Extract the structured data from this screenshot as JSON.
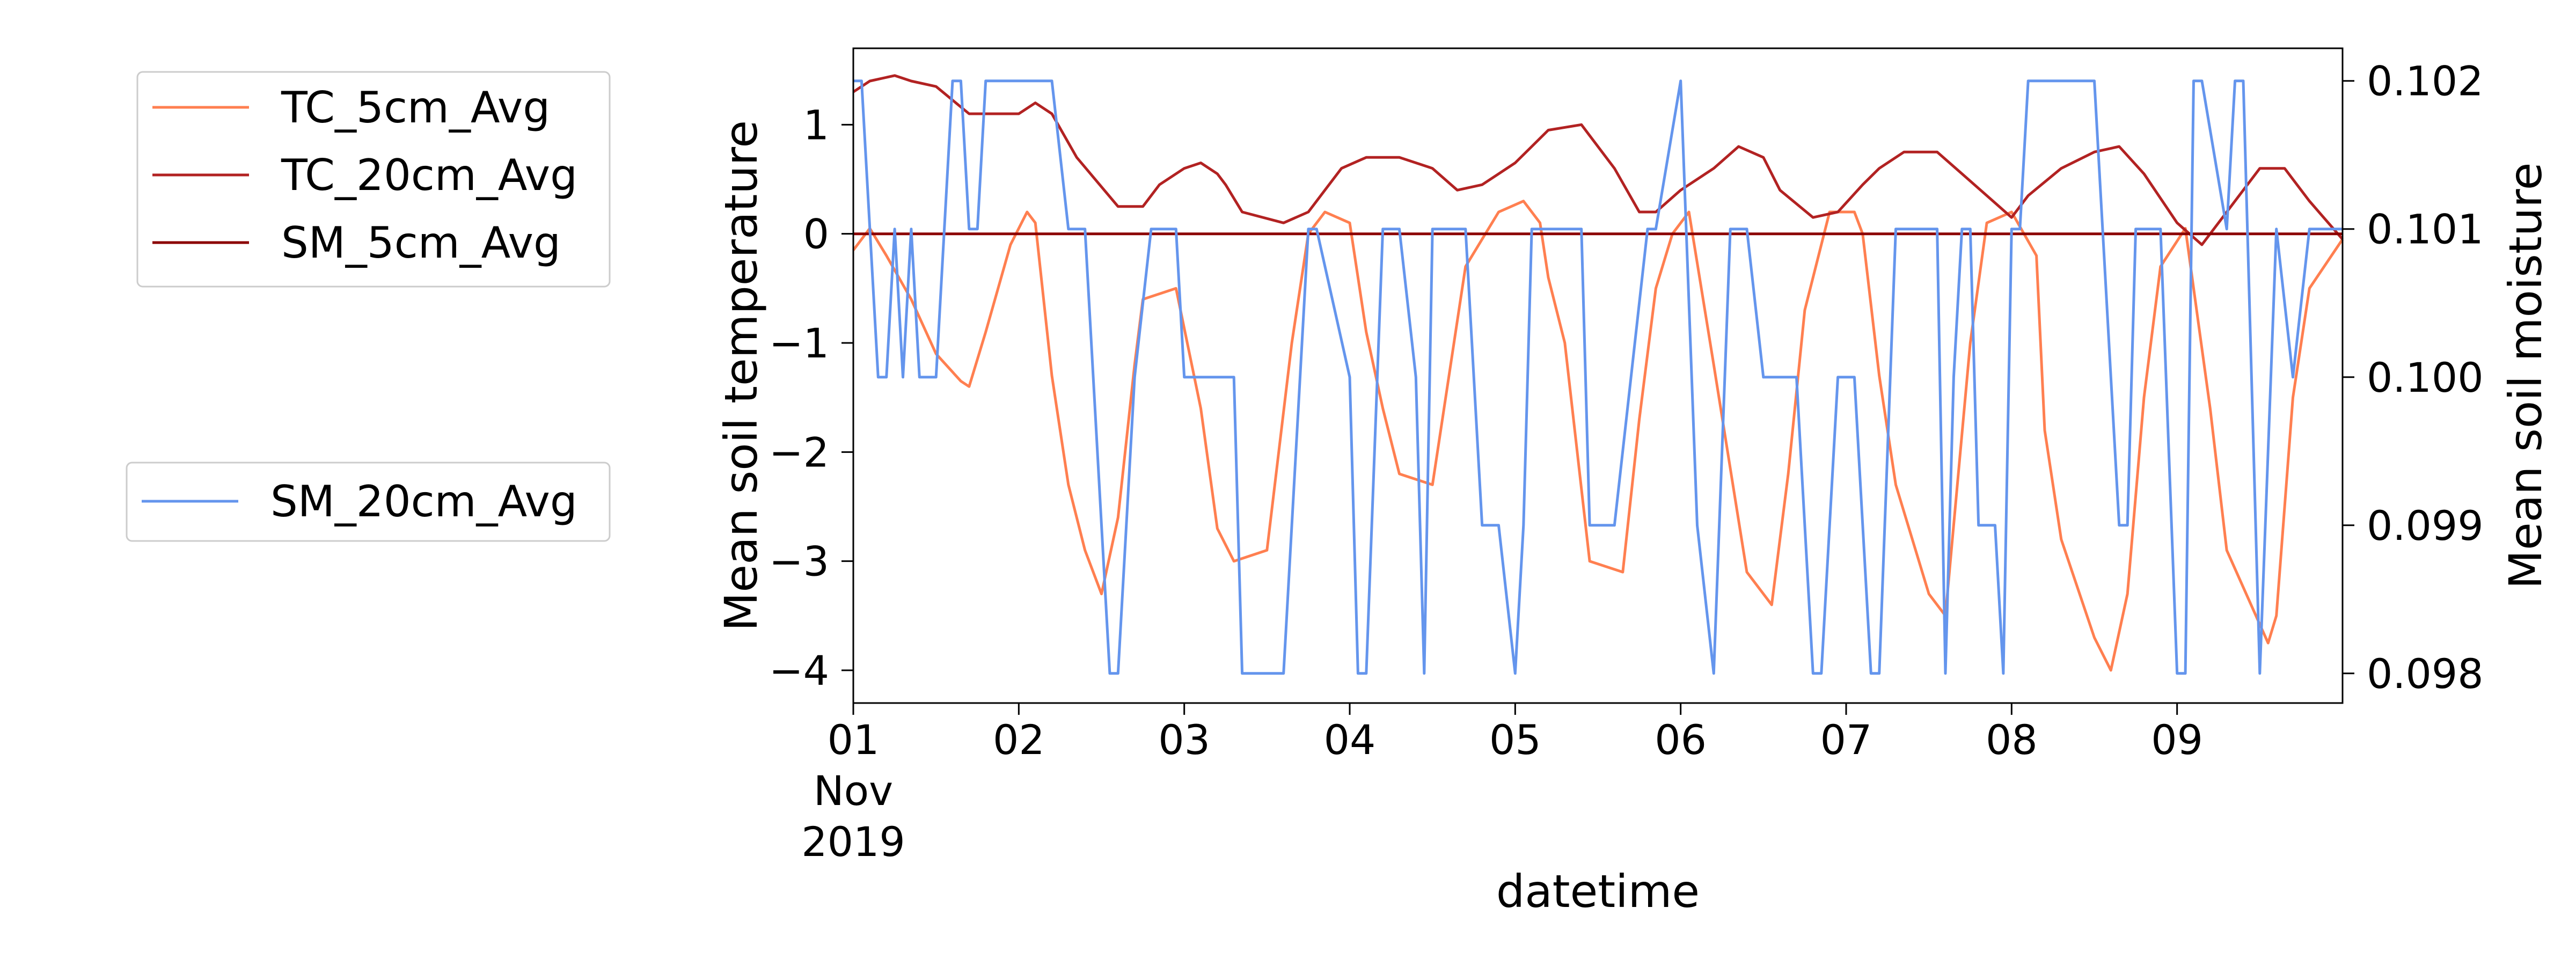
{
  "chart_data": {
    "type": "line",
    "xlabel": "datetime",
    "y_left_label": "Mean soil temperature",
    "y_right_label": "Mean soil moisture",
    "x_range_days": [
      0,
      9.0
    ],
    "y_left_range": [
      -4.3,
      1.7
    ],
    "y_right_range": [
      0.0978,
      0.10222
    ],
    "x_ticks": [
      {
        "day": 0,
        "label": "01",
        "sub1": "Nov",
        "sub2": "2019"
      },
      {
        "day": 1,
        "label": "02"
      },
      {
        "day": 2,
        "label": "03"
      },
      {
        "day": 3,
        "label": "04"
      },
      {
        "day": 4,
        "label": "05"
      },
      {
        "day": 5,
        "label": "06"
      },
      {
        "day": 6,
        "label": "07"
      },
      {
        "day": 7,
        "label": "08"
      },
      {
        "day": 8,
        "label": "09"
      }
    ],
    "y_left_ticks": [
      {
        "value": 1,
        "label": "1"
      },
      {
        "value": 0,
        "label": "0"
      },
      {
        "value": -1,
        "label": "−1"
      },
      {
        "value": -2,
        "label": "−2"
      },
      {
        "value": -3,
        "label": "−3"
      },
      {
        "value": -4,
        "label": "−4"
      }
    ],
    "y_right_ticks": [
      {
        "value": 0.102,
        "label": "0.102"
      },
      {
        "value": 0.101,
        "label": "0.101"
      },
      {
        "value": 0.1,
        "label": "0.100"
      },
      {
        "value": 0.099,
        "label": "0.099"
      },
      {
        "value": 0.098,
        "label": "0.098"
      }
    ],
    "legend_left_top": [
      "TC_5cm_Avg",
      "TC_20cm_Avg",
      "SM_5cm_Avg"
    ],
    "legend_left_bottom": [
      "SM_20cm_Avg"
    ],
    "series": [
      {
        "name": "TC_5cm_Avg",
        "axis": "left",
        "color": "#ff7f50",
        "x": [
          0,
          0.1,
          0.2,
          0.35,
          0.5,
          0.65,
          0.7,
          0.8,
          0.95,
          1.05,
          1.1,
          1.2,
          1.3,
          1.4,
          1.5,
          1.6,
          1.7,
          1.75,
          1.95,
          2.1,
          2.2,
          2.3,
          2.5,
          2.65,
          2.75,
          2.85,
          3.0,
          3.1,
          3.2,
          3.3,
          3.5,
          3.7,
          3.9,
          4.05,
          4.15,
          4.2,
          4.3,
          4.45,
          4.65,
          4.75,
          4.85,
          4.95,
          5.05,
          5.2,
          5.4,
          5.55,
          5.65,
          5.75,
          5.9,
          6.05,
          6.1,
          6.2,
          6.3,
          6.5,
          6.6,
          6.75,
          6.85,
          7.0,
          7.15,
          7.2,
          7.3,
          7.5,
          7.6,
          7.7,
          7.8,
          7.9,
          8.05,
          8.1,
          8.2,
          8.3,
          8.55,
          8.6,
          8.7,
          8.8,
          9.0
        ],
        "y": [
          -0.15,
          0.05,
          -0.2,
          -0.6,
          -1.1,
          -1.35,
          -1.4,
          -0.9,
          -0.1,
          0.2,
          0.1,
          -1.3,
          -2.3,
          -2.9,
          -3.3,
          -2.6,
          -1.2,
          -0.6,
          -0.5,
          -1.6,
          -2.7,
          -3.0,
          -2.9,
          -1.0,
          0.0,
          0.2,
          0.1,
          -0.9,
          -1.6,
          -2.2,
          -2.3,
          -0.3,
          0.2,
          0.3,
          0.1,
          -0.4,
          -1.0,
          -3.0,
          -3.1,
          -1.7,
          -0.5,
          0.0,
          0.2,
          -1.2,
          -3.1,
          -3.4,
          -2.2,
          -0.7,
          0.2,
          0.2,
          0.0,
          -1.3,
          -2.3,
          -3.3,
          -3.5,
          -1.0,
          0.1,
          0.2,
          -0.2,
          -1.8,
          -2.8,
          -3.7,
          -4.0,
          -3.3,
          -1.5,
          -0.3,
          0.05,
          -0.5,
          -1.6,
          -2.9,
          -3.75,
          -3.5,
          -1.5,
          -0.5,
          -0.05
        ]
      },
      {
        "name": "TC_20cm_Avg",
        "axis": "left",
        "color": "#b22222",
        "x": [
          0,
          0.1,
          0.25,
          0.35,
          0.5,
          0.7,
          0.9,
          1.0,
          1.1,
          1.2,
          1.35,
          1.6,
          1.75,
          1.85,
          2.0,
          2.1,
          2.2,
          2.25,
          2.35,
          2.6,
          2.75,
          2.85,
          2.95,
          3.1,
          3.3,
          3.5,
          3.65,
          3.8,
          4.0,
          4.1,
          4.2,
          4.4,
          4.6,
          4.75,
          4.85,
          5.0,
          5.2,
          5.35,
          5.5,
          5.6,
          5.8,
          5.95,
          6.1,
          6.2,
          6.35,
          6.55,
          6.7,
          6.85,
          7.0,
          7.1,
          7.3,
          7.5,
          7.65,
          7.8,
          8.0,
          8.15,
          8.3,
          8.5,
          8.65,
          8.8,
          9.0
        ],
        "y": [
          1.3,
          1.4,
          1.45,
          1.4,
          1.35,
          1.1,
          1.1,
          1.1,
          1.2,
          1.1,
          0.7,
          0.25,
          0.25,
          0.45,
          0.6,
          0.65,
          0.55,
          0.45,
          0.2,
          0.1,
          0.2,
          0.4,
          0.6,
          0.7,
          0.7,
          0.6,
          0.4,
          0.45,
          0.65,
          0.8,
          0.95,
          1.0,
          0.6,
          0.2,
          0.2,
          0.4,
          0.6,
          0.8,
          0.7,
          0.4,
          0.15,
          0.2,
          0.45,
          0.6,
          0.75,
          0.75,
          0.55,
          0.35,
          0.15,
          0.35,
          0.6,
          0.75,
          0.8,
          0.55,
          0.1,
          -0.1,
          0.2,
          0.6,
          0.6,
          0.3,
          -0.05
        ]
      },
      {
        "name": "SM_5cm_Avg",
        "axis": "left",
        "color": "#8b0000",
        "x": [
          0,
          9.0
        ],
        "y": [
          0,
          0
        ]
      },
      {
        "name": "SM_20cm_Avg",
        "axis": "right",
        "color": "#6495ed",
        "x": [
          0,
          0.05,
          0.15,
          0.2,
          0.25,
          0.3,
          0.35,
          0.4,
          0.5,
          0.6,
          0.65,
          0.7,
          0.75,
          0.8,
          1.0,
          1.05,
          1.2,
          1.3,
          1.4,
          1.45,
          1.5,
          1.55,
          1.6,
          1.7,
          1.8,
          1.95,
          2.0,
          2.1,
          2.3,
          2.35,
          2.5,
          2.55,
          2.6,
          2.75,
          2.8,
          3.0,
          3.05,
          3.1,
          3.2,
          3.3,
          3.4,
          3.45,
          3.5,
          3.6,
          3.7,
          3.8,
          3.9,
          4.0,
          4.05,
          4.1,
          4.2,
          4.4,
          4.45,
          4.6,
          4.8,
          4.85,
          5.0,
          5.1,
          5.2,
          5.3,
          5.35,
          5.4,
          5.5,
          5.7,
          5.8,
          5.85,
          5.95,
          6.05,
          6.15,
          6.2,
          6.3,
          6.35,
          6.45,
          6.55,
          6.6,
          6.65,
          6.7,
          6.75,
          6.8,
          6.9,
          6.95,
          7.0,
          7.05,
          7.1,
          7.2,
          7.3,
          7.5,
          7.6,
          7.65,
          7.7,
          7.75,
          7.85,
          7.9,
          8.0,
          8.05,
          8.1,
          8.15,
          8.3,
          8.35,
          8.4,
          8.5,
          8.6,
          8.7,
          8.8,
          9.0
        ],
        "y": [
          0.102,
          0.102,
          0.1,
          0.1,
          0.101,
          0.1,
          0.101,
          0.1,
          0.1,
          0.102,
          0.102,
          0.101,
          0.101,
          0.102,
          0.102,
          0.102,
          0.102,
          0.101,
          0.101,
          0.1,
          0.099,
          0.098,
          0.098,
          0.1,
          0.101,
          0.101,
          0.1,
          0.1,
          0.1,
          0.098,
          0.098,
          0.098,
          0.098,
          0.101,
          0.101,
          0.1,
          0.098,
          0.098,
          0.101,
          0.101,
          0.1,
          0.098,
          0.101,
          0.101,
          0.101,
          0.099,
          0.099,
          0.098,
          0.099,
          0.101,
          0.101,
          0.101,
          0.099,
          0.099,
          0.101,
          0.101,
          0.102,
          0.099,
          0.098,
          0.101,
          0.101,
          0.101,
          0.1,
          0.1,
          0.098,
          0.098,
          0.1,
          0.1,
          0.098,
          0.098,
          0.101,
          0.101,
          0.101,
          0.101,
          0.098,
          0.1,
          0.101,
          0.101,
          0.099,
          0.099,
          0.098,
          0.101,
          0.101,
          0.102,
          0.102,
          0.102,
          0.102,
          0.1,
          0.099,
          0.099,
          0.101,
          0.101,
          0.101,
          0.098,
          0.098,
          0.102,
          0.102,
          0.101,
          0.102,
          0.102,
          0.098,
          0.101,
          0.1,
          0.101,
          0.101
        ]
      }
    ]
  }
}
